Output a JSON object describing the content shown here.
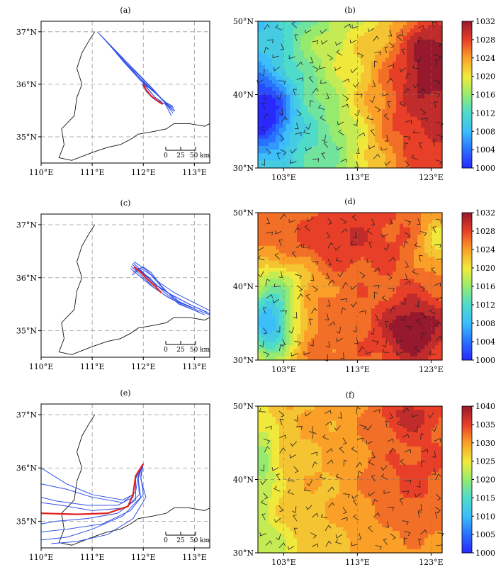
{
  "chart_data": [
    {
      "id": "a",
      "type": "trajectory-map",
      "label": "(a)",
      "xticks": [
        110,
        111,
        112,
        113
      ],
      "xtick_labels": [
        "110°E",
        "111°E",
        "112°E",
        "113°E"
      ],
      "yticks": [
        35,
        36,
        37
      ],
      "ytick_labels": [
        "35°N",
        "36°N",
        "37°N"
      ],
      "xlim": [
        110,
        113.3
      ],
      "ylim": [
        34.5,
        37.2
      ],
      "grid": true,
      "scalebar": {
        "labels": [
          "0",
          "25",
          "50 km"
        ]
      },
      "colors": {
        "ensemble": "#3050e8",
        "mean": "#e02020"
      },
      "mean_track": [
        [
          112.0,
          36.0
        ],
        [
          112.05,
          35.9
        ],
        [
          112.15,
          35.78
        ],
        [
          112.28,
          35.68
        ],
        [
          112.38,
          35.62
        ]
      ],
      "ensemble_tracks": [
        [
          [
            111.1,
            37.0
          ],
          [
            111.5,
            36.6
          ],
          [
            111.85,
            36.25
          ],
          [
            112.15,
            35.95
          ],
          [
            112.4,
            35.68
          ],
          [
            112.55,
            35.4
          ]
        ],
        [
          [
            111.15,
            36.95
          ],
          [
            111.52,
            36.55
          ],
          [
            111.88,
            36.2
          ],
          [
            112.18,
            35.92
          ],
          [
            112.42,
            35.65
          ],
          [
            112.58,
            35.45
          ]
        ],
        [
          [
            111.2,
            36.9
          ],
          [
            111.58,
            36.5
          ],
          [
            111.9,
            36.15
          ],
          [
            112.2,
            35.88
          ],
          [
            112.45,
            35.62
          ],
          [
            112.6,
            35.48
          ]
        ],
        [
          [
            111.25,
            36.85
          ],
          [
            111.6,
            36.45
          ],
          [
            111.93,
            36.1
          ],
          [
            112.22,
            35.85
          ],
          [
            112.48,
            35.6
          ],
          [
            112.62,
            35.5
          ]
        ],
        [
          [
            111.3,
            36.8
          ],
          [
            111.62,
            36.42
          ],
          [
            111.95,
            36.07
          ],
          [
            112.25,
            35.82
          ],
          [
            112.5,
            35.6
          ],
          [
            112.6,
            35.55
          ]
        ],
        [
          [
            111.35,
            36.75
          ],
          [
            111.65,
            36.4
          ],
          [
            111.97,
            36.05
          ],
          [
            112.25,
            35.82
          ],
          [
            112.45,
            35.65
          ],
          [
            112.58,
            35.58
          ]
        ],
        [
          [
            112.0,
            36.05
          ],
          [
            112.1,
            35.9
          ],
          [
            112.22,
            35.76
          ],
          [
            112.35,
            35.66
          ],
          [
            112.42,
            35.62
          ]
        ],
        [
          [
            111.98,
            36.0
          ],
          [
            112.06,
            35.86
          ],
          [
            112.18,
            35.74
          ],
          [
            112.3,
            35.66
          ],
          [
            112.4,
            35.63
          ]
        ],
        [
          [
            111.99,
            36.02
          ],
          [
            112.12,
            35.88
          ],
          [
            112.24,
            35.74
          ],
          [
            112.36,
            35.67
          ]
        ]
      ]
    },
    {
      "id": "b",
      "type": "heatmap",
      "label": "(b)",
      "xticks": [
        103,
        113,
        123
      ],
      "xtick_labels": [
        "103°E",
        "113°E",
        "123°E"
      ],
      "yticks": [
        30,
        40,
        50
      ],
      "ytick_labels": [
        "30°N",
        "40°N",
        "50°N"
      ],
      "xlim": [
        99.5,
        124.5
      ],
      "ylim": [
        30,
        50
      ],
      "colorbar": {
        "min": 1000,
        "max": 1032,
        "ticks": [
          1000,
          1004,
          1008,
          1012,
          1016,
          1020,
          1024,
          1028,
          1032
        ]
      },
      "field": {
        "base": 1016,
        "gradient": [
          0.55,
          -0.1
        ],
        "centers": [
          {
            "lon": 100.5,
            "lat": 37.5,
            "amp": -12,
            "rx": 2.5,
            "ry": 3.5
          },
          {
            "lon": 120,
            "lat": 39,
            "amp": 8,
            "rx": 7,
            "ry": 9
          },
          {
            "lon": 123,
            "lat": 46,
            "amp": 6,
            "rx": 3,
            "ry": 4
          },
          {
            "lon": 108,
            "lat": 47,
            "amp": 3,
            "rx": 4,
            "ry": 3
          },
          {
            "lon": 110,
            "lat": 33,
            "amp": -3,
            "rx": 4,
            "ry": 4
          }
        ]
      }
    },
    {
      "id": "c",
      "type": "trajectory-map",
      "label": "(c)",
      "xticks": [
        110,
        111,
        112,
        113
      ],
      "xtick_labels": [
        "110°E",
        "111°E",
        "112°E",
        "113°E"
      ],
      "yticks": [
        35,
        36,
        37
      ],
      "ytick_labels": [
        "35°N",
        "36°N",
        "37°N"
      ],
      "xlim": [
        110,
        113.3
      ],
      "ylim": [
        34.5,
        37.2
      ],
      "grid": true,
      "scalebar": {
        "labels": [
          "0",
          "25",
          "50 km"
        ]
      },
      "colors": {
        "ensemble": "#3050e8",
        "mean": "#e02020"
      },
      "mean_track": [
        [
          111.82,
          36.2
        ],
        [
          111.95,
          36.1
        ],
        [
          112.1,
          35.95
        ],
        [
          112.25,
          35.82
        ],
        [
          112.35,
          35.72
        ]
      ],
      "ensemble_tracks": [
        [
          [
            111.78,
            36.25
          ],
          [
            111.95,
            36.12
          ],
          [
            112.2,
            35.9
          ],
          [
            112.5,
            35.7
          ],
          [
            112.9,
            35.5
          ],
          [
            113.3,
            35.32
          ]
        ],
        [
          [
            111.76,
            36.22
          ],
          [
            111.95,
            36.05
          ],
          [
            112.2,
            35.82
          ],
          [
            112.5,
            35.62
          ],
          [
            112.9,
            35.45
          ],
          [
            113.3,
            35.3
          ]
        ],
        [
          [
            111.8,
            36.28
          ],
          [
            112.0,
            36.1
          ],
          [
            112.25,
            35.85
          ],
          [
            112.55,
            35.68
          ],
          [
            112.9,
            35.5
          ],
          [
            113.25,
            35.35
          ]
        ],
        [
          [
            111.75,
            36.18
          ],
          [
            111.9,
            36.05
          ],
          [
            112.15,
            35.85
          ],
          [
            112.45,
            35.65
          ],
          [
            112.8,
            35.47
          ],
          [
            113.2,
            35.3
          ]
        ],
        [
          [
            111.82,
            36.3
          ],
          [
            112.05,
            36.15
          ],
          [
            112.3,
            35.92
          ],
          [
            112.6,
            35.72
          ],
          [
            112.95,
            35.55
          ],
          [
            113.3,
            35.38
          ]
        ],
        [
          [
            111.85,
            36.15
          ],
          [
            112.0,
            36.2
          ],
          [
            112.15,
            36.1
          ],
          [
            112.35,
            35.85
          ],
          [
            112.6,
            35.6
          ],
          [
            112.9,
            35.45
          ]
        ],
        [
          [
            111.8,
            36.1
          ],
          [
            111.95,
            36.18
          ],
          [
            112.15,
            36.05
          ],
          [
            112.4,
            35.78
          ],
          [
            112.7,
            35.55
          ],
          [
            113.0,
            35.42
          ]
        ],
        [
          [
            111.78,
            36.05
          ],
          [
            111.92,
            36.15
          ],
          [
            112.12,
            36.0
          ],
          [
            112.38,
            35.75
          ],
          [
            112.7,
            35.5
          ],
          [
            113.1,
            35.35
          ]
        ]
      ]
    },
    {
      "id": "d",
      "type": "heatmap",
      "label": "(d)",
      "xticks": [
        103,
        113,
        123
      ],
      "xtick_labels": [
        "103°E",
        "113°E",
        "123°E"
      ],
      "yticks": [
        30,
        40,
        50
      ],
      "ytick_labels": [
        "30°N",
        "40°N",
        "50°N"
      ],
      "xlim": [
        99.5,
        124.5
      ],
      "ylim": [
        30,
        50
      ],
      "colorbar": {
        "min": 1000,
        "max": 1032,
        "ticks": [
          1000,
          1004,
          1008,
          1012,
          1016,
          1020,
          1024,
          1028,
          1032
        ]
      },
      "field": {
        "base": 1026,
        "gradient": [
          0.05,
          0.0
        ],
        "centers": [
          {
            "lon": 101,
            "lat": 35,
            "amp": -18,
            "rx": 2.5,
            "ry": 4
          },
          {
            "lon": 120.5,
            "lat": 34,
            "amp": 7,
            "rx": 3,
            "ry": 3
          },
          {
            "lon": 111,
            "lat": 46.5,
            "amp": 3,
            "rx": 5,
            "ry": 3
          },
          {
            "lon": 124,
            "lat": 46,
            "amp": -6,
            "rx": 2,
            "ry": 3
          },
          {
            "lon": 104,
            "lat": 41,
            "amp": -4,
            "rx": 3,
            "ry": 2
          }
        ]
      }
    },
    {
      "id": "e",
      "type": "trajectory-map",
      "label": "(e)",
      "xticks": [
        110,
        111,
        112,
        113
      ],
      "xtick_labels": [
        "110°E",
        "111°E",
        "112°E",
        "113°E"
      ],
      "yticks": [
        35,
        36,
        37
      ],
      "ytick_labels": [
        "35°N",
        "36°N",
        "37°N"
      ],
      "xlim": [
        110,
        113.3
      ],
      "ylim": [
        34.5,
        37.2
      ],
      "grid": true,
      "scalebar": {
        "labels": [
          "0",
          "25",
          "50 km"
        ]
      },
      "colors": {
        "ensemble": "#3050e8",
        "mean": "#e02020"
      },
      "mean_track": [
        [
          112.0,
          36.08
        ],
        [
          111.85,
          35.85
        ],
        [
          111.8,
          35.5
        ],
        [
          111.7,
          35.28
        ],
        [
          111.3,
          35.15
        ],
        [
          110.7,
          35.13
        ],
        [
          110.0,
          35.15
        ]
      ],
      "ensemble_tracks": [
        [
          [
            112.0,
            36.08
          ],
          [
            111.85,
            35.85
          ],
          [
            111.8,
            35.5
          ],
          [
            111.6,
            35.4
          ],
          [
            111.0,
            35.5
          ],
          [
            110.5,
            35.7
          ],
          [
            110.0,
            36.0
          ]
        ],
        [
          [
            112.0,
            36.08
          ],
          [
            111.9,
            35.85
          ],
          [
            111.85,
            35.55
          ],
          [
            111.6,
            35.35
          ],
          [
            111.0,
            35.45
          ],
          [
            110.5,
            35.6
          ],
          [
            110.0,
            35.7
          ]
        ],
        [
          [
            112.0,
            36.08
          ],
          [
            111.85,
            35.8
          ],
          [
            111.8,
            35.45
          ],
          [
            111.5,
            35.3
          ],
          [
            110.9,
            35.3
          ],
          [
            110.3,
            35.38
          ],
          [
            110.0,
            35.45
          ]
        ],
        [
          [
            112.0,
            36.08
          ],
          [
            111.9,
            35.85
          ],
          [
            111.92,
            35.5
          ],
          [
            111.65,
            35.25
          ],
          [
            111.0,
            35.2
          ],
          [
            110.4,
            35.3
          ],
          [
            110.0,
            35.35
          ]
        ],
        [
          [
            112.0,
            36.08
          ],
          [
            111.85,
            35.8
          ],
          [
            111.85,
            35.4
          ],
          [
            111.5,
            35.15
          ],
          [
            110.9,
            35.05
          ],
          [
            110.3,
            35.0
          ],
          [
            110.0,
            34.95
          ]
        ],
        [
          [
            112.0,
            36.08
          ],
          [
            111.95,
            35.85
          ],
          [
            112.0,
            35.5
          ],
          [
            111.75,
            35.2
          ],
          [
            111.2,
            34.95
          ],
          [
            110.5,
            34.85
          ],
          [
            110.0,
            34.8
          ]
        ],
        [
          [
            112.0,
            36.08
          ],
          [
            111.9,
            35.8
          ],
          [
            111.95,
            35.45
          ],
          [
            111.6,
            35.1
          ],
          [
            111.0,
            34.85
          ],
          [
            110.5,
            34.7
          ],
          [
            110.0,
            34.65
          ]
        ],
        [
          [
            112.0,
            36.08
          ],
          [
            111.95,
            35.8
          ],
          [
            112.05,
            35.45
          ],
          [
            111.8,
            35.05
          ],
          [
            111.3,
            34.75
          ],
          [
            110.7,
            34.62
          ],
          [
            110.2,
            34.58
          ]
        ]
      ]
    },
    {
      "id": "f",
      "type": "heatmap",
      "label": "(f)",
      "xticks": [
        103,
        113,
        123
      ],
      "xtick_labels": [
        "103°E",
        "113°E",
        "123°E"
      ],
      "yticks": [
        30,
        40,
        50
      ],
      "ytick_labels": [
        "30°N",
        "40°N",
        "50°N"
      ],
      "xlim": [
        99.5,
        124.5
      ],
      "ylim": [
        30,
        50
      ],
      "colorbar": {
        "min": 1000,
        "max": 1040,
        "ticks": [
          1000,
          1005,
          1010,
          1015,
          1020,
          1025,
          1030,
          1035,
          1040
        ]
      },
      "field": {
        "base": 1029,
        "gradient": [
          0.15,
          0.08
        ],
        "centers": [
          {
            "lon": 100,
            "lat": 42,
            "amp": -7,
            "rx": 1.5,
            "ry": 5
          },
          {
            "lon": 120,
            "lat": 40,
            "amp": 4,
            "rx": 5,
            "ry": 6
          },
          {
            "lon": 120,
            "lat": 49,
            "amp": 5,
            "rx": 3,
            "ry": 2
          },
          {
            "lon": 101,
            "lat": 31,
            "amp": -5,
            "rx": 2,
            "ry": 2
          }
        ]
      }
    }
  ]
}
